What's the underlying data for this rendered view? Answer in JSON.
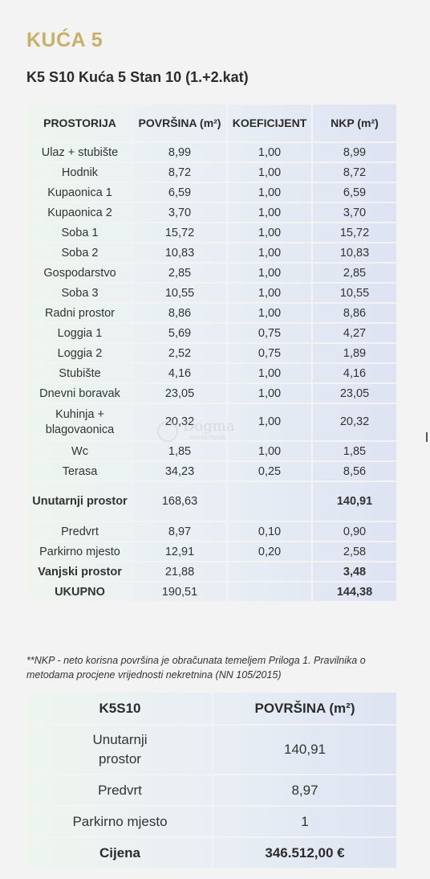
{
  "title": "KUĆA 5",
  "subtitle": "K5 S10 Kuća 5 Stan 10 (1.+2.kat)",
  "table": {
    "headers": [
      "PROSTORIJA",
      "POVRŠINA (m²)",
      "KOEFICIJENT",
      "NKP (m²)"
    ],
    "rows": [
      [
        "Ulaz + stubište",
        "8,99",
        "1,00",
        "8,99"
      ],
      [
        "Hodnik",
        "8,72",
        "1,00",
        "8,72"
      ],
      [
        "Kupaonica 1",
        "6,59",
        "1,00",
        "6,59"
      ],
      [
        "Kupaonica 2",
        "3,70",
        "1,00",
        "3,70"
      ],
      [
        "Soba 1",
        "15,72",
        "1,00",
        "15,72"
      ],
      [
        "Soba 2",
        "10,83",
        "1,00",
        "10,83"
      ],
      [
        "Gospodarstvo",
        "2,85",
        "1,00",
        "2,85"
      ],
      [
        "Soba 3",
        "10,55",
        "1,00",
        "10,55"
      ],
      [
        "Radni prostor",
        "8,86",
        "1,00",
        "8,86"
      ],
      [
        "Loggia 1",
        "5,69",
        "0,75",
        "4,27"
      ],
      [
        "Loggia 2",
        "2,52",
        "0,75",
        "1,89"
      ],
      [
        "Stubište",
        "4,16",
        "1,00",
        "4,16"
      ],
      [
        "Dnevni boravak",
        "23,05",
        "1,00",
        "23,05"
      ],
      [
        "Kuhinja + blagovaonica",
        "20,32",
        "1,00",
        "20,32"
      ],
      [
        "Wc",
        "1,85",
        "1,00",
        "1,85"
      ],
      [
        "Terasa",
        "34,23",
        "0,25",
        "8,56"
      ],
      [
        "Unutarnji prostor",
        "168,63",
        "",
        "140,91"
      ],
      [
        "Predvrt",
        "8,97",
        "0,10",
        "0,90"
      ],
      [
        "Parkirno mjesto",
        "12,91",
        "0,20",
        "2,58"
      ],
      [
        "Vanjski prostor",
        "21,88",
        "",
        "3,48"
      ],
      [
        "UKUPNO",
        "190,51",
        "",
        "144,38"
      ]
    ]
  },
  "note": "**NKP - neto korisna površina je obračunata temeljem Priloga 1. Pravilnika o metodama procjene vrijednosti nekretnina (NN 105/2015)",
  "summary": {
    "headers": [
      "K5S10",
      "POVRŠINA (m²)"
    ],
    "rows": [
      [
        "Unutarnji prostor",
        "140,91"
      ],
      [
        "Predvrt",
        "8,97"
      ],
      [
        "Parkirno mjesto",
        "1"
      ],
      [
        "Cijena",
        "346.512,00 €"
      ]
    ]
  },
  "watermark": {
    "text": "Dogma",
    "sub": "NEKRETNINE",
    "icon": "dogma-logo-icon"
  }
}
